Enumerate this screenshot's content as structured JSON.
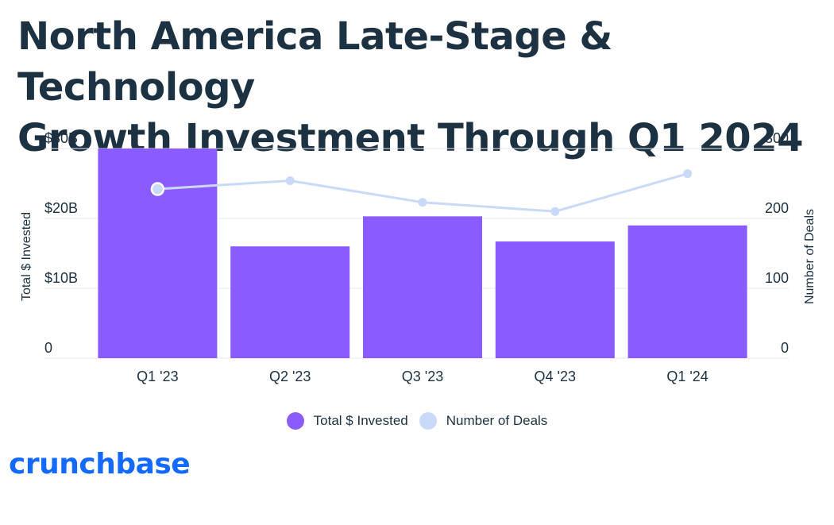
{
  "title_lines": [
    "North America Late-Stage & Technology",
    "Growth Investment Through Q1 2024"
  ],
  "colors": {
    "bar": "#8a5cff",
    "line": "#c9daf8",
    "text": "#1c3141",
    "brand": "#146aff",
    "grid": "#e6e9ee"
  },
  "chart_data": {
    "type": "bar",
    "categories": [
      "Q1 '23",
      "Q2 '23",
      "Q3 '23",
      "Q4 '23",
      "Q1 '24"
    ],
    "series": [
      {
        "name": "Total $ Invested",
        "type": "bar",
        "axis": "left",
        "values": [
          30,
          16,
          20.3,
          16.7,
          19
        ]
      },
      {
        "name": "Number of Deals",
        "type": "line",
        "axis": "right",
        "values": [
          242,
          254,
          223,
          210,
          264
        ]
      }
    ],
    "y_left": {
      "label": "Total $ Invested",
      "ticks": [
        "0",
        "$10B",
        "$20B",
        "$30B"
      ],
      "range": [
        0,
        30
      ]
    },
    "y_right": {
      "label": "Number of Deals",
      "ticks": [
        "0",
        "100",
        "200",
        "300"
      ],
      "range": [
        0,
        300
      ]
    },
    "grid": true,
    "legend_position": "bottom"
  },
  "legend": [
    {
      "label": "Total $ Invested",
      "color": "#8a5cff"
    },
    {
      "label": "Number of Deals",
      "color": "#c9daf8"
    }
  ],
  "brand": "crunchbase"
}
